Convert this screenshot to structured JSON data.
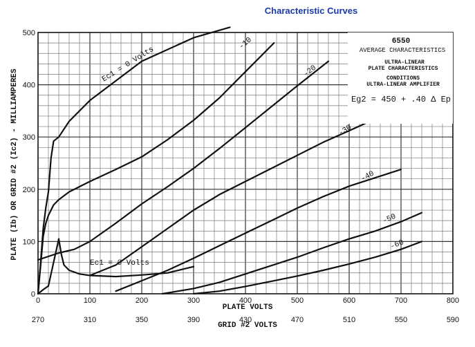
{
  "page": {
    "title": "Characteristic Curves"
  },
  "chart_data": {
    "type": "line",
    "title": "Characteristic Curves",
    "tube": "6550",
    "info_box": [
      "6550",
      "AVERAGE CHARACTERISTICS",
      "ULTRA-LINEAR",
      "PLATE CHARACTERISTICS",
      "CONDITIONS",
      "ULTRA-LINEAR AMPLIFIER",
      "Eg2 = 450 + .40 Δ Ep"
    ],
    "xlabel": "PLATE VOLTS",
    "xlabel2": "GRID #2 VOLTS",
    "ylabel": "PLATE (Ib) OR GRID #2 (Ic2) - MILLIAMPERES",
    "xlim": [
      0,
      800
    ],
    "ylim": [
      0,
      500
    ],
    "x_ticks": [
      "0",
      "100",
      "200",
      "300",
      "400",
      "500",
      "600",
      "700",
      "800"
    ],
    "x_tick_values": [
      0,
      100,
      200,
      300,
      400,
      500,
      600,
      700,
      800
    ],
    "x2_ticks": [
      "270",
      "310",
      "350",
      "390",
      "430",
      "470",
      "510",
      "550",
      "590"
    ],
    "y_ticks": [
      "0",
      "100",
      "200",
      "300",
      "400",
      "500"
    ],
    "y_tick_values": [
      0,
      100,
      200,
      300,
      400,
      500
    ],
    "grid": true,
    "series": [
      {
        "name": "Ec1 = 0 Volts",
        "kind": "plate",
        "x": [
          0,
          5,
          10,
          15,
          20,
          25,
          30,
          40,
          60,
          100,
          200,
          300,
          370
        ],
        "y": [
          0,
          60,
          125,
          165,
          195,
          260,
          292,
          300,
          330,
          370,
          445,
          490,
          510
        ]
      },
      {
        "name": "-10",
        "kind": "plate",
        "x": [
          0,
          5,
          10,
          15,
          20,
          25,
          30,
          40,
          60,
          100,
          150,
          200,
          250,
          300,
          350,
          400,
          455
        ],
        "y": [
          0,
          55,
          110,
          135,
          150,
          160,
          170,
          180,
          195,
          215,
          238,
          262,
          295,
          332,
          375,
          425,
          480
        ]
      },
      {
        "name": "-20",
        "kind": "plate",
        "x": [
          0,
          40,
          70,
          100,
          150,
          200,
          250,
          300,
          350,
          400,
          450,
          500,
          560
        ],
        "y": [
          65,
          78,
          85,
          100,
          135,
          172,
          205,
          240,
          278,
          318,
          358,
          398,
          445
        ]
      },
      {
        "name": "-30",
        "kind": "plate",
        "x": [
          100,
          150,
          200,
          250,
          300,
          350,
          400,
          450,
          500,
          550,
          600,
          640
        ],
        "y": [
          35,
          55,
          90,
          125,
          160,
          190,
          215,
          240,
          265,
          290,
          312,
          330
        ]
      },
      {
        "name": "-40",
        "kind": "plate",
        "x": [
          150,
          200,
          250,
          300,
          350,
          400,
          450,
          500,
          550,
          600,
          650,
          700
        ],
        "y": [
          5,
          25,
          45,
          68,
          92,
          116,
          140,
          164,
          186,
          206,
          222,
          238
        ]
      },
      {
        "name": "-50",
        "kind": "plate",
        "x": [
          240,
          300,
          350,
          400,
          450,
          500,
          550,
          600,
          650,
          700,
          740
        ],
        "y": [
          0,
          10,
          22,
          38,
          54,
          70,
          88,
          105,
          120,
          138,
          155
        ]
      },
      {
        "name": "-60",
        "kind": "plate",
        "x": [
          300,
          350,
          400,
          450,
          500,
          550,
          600,
          650,
          700,
          740
        ],
        "y": [
          0,
          5,
          14,
          24,
          34,
          45,
          57,
          70,
          85,
          100
        ]
      },
      {
        "name": "Ec1 = 0 Volts",
        "kind": "grid2",
        "x": [
          0,
          10,
          20,
          30,
          40,
          45,
          50,
          60,
          80,
          100,
          150,
          200,
          250,
          300
        ],
        "y": [
          0,
          8,
          15,
          60,
          105,
          75,
          55,
          45,
          38,
          35,
          33,
          36,
          40,
          52
        ]
      }
    ],
    "annotations": [
      {
        "text": "Ec1 = 0 Volts",
        "near_series": "plate Ec1 = 0"
      },
      {
        "text": "Ec1 = 0 Volts",
        "near_series": "grid #2 Ec1 = 0"
      },
      {
        "text": "-10"
      },
      {
        "text": "-20"
      },
      {
        "text": "-30"
      },
      {
        "text": "-40"
      },
      {
        "text": "-50"
      },
      {
        "text": "-60"
      }
    ]
  }
}
